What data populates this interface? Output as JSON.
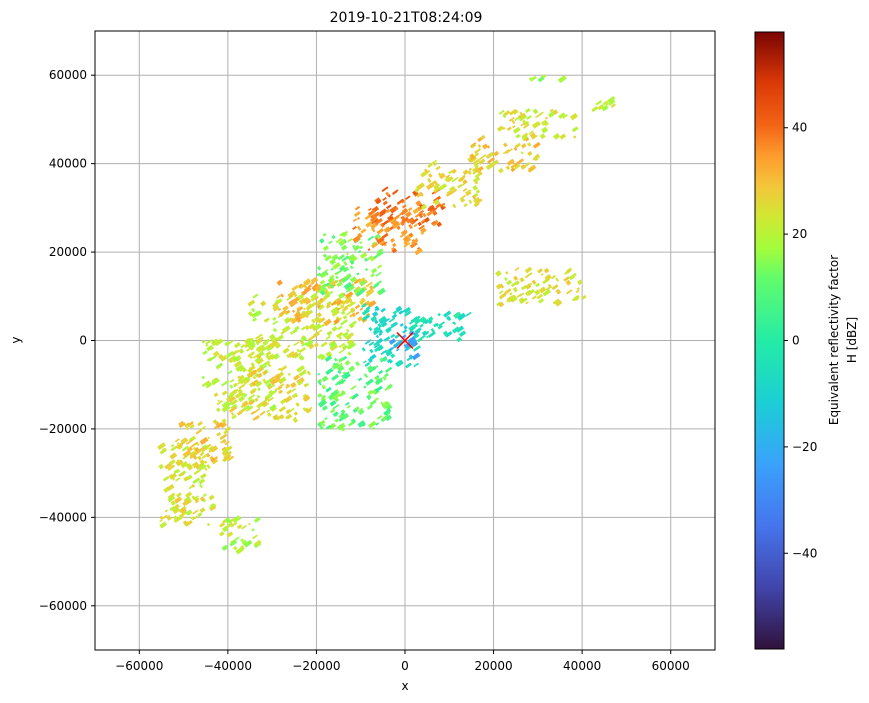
{
  "chart_data": {
    "type": "heatmap",
    "title": "2019-10-21T08:24:09",
    "xlabel": "x",
    "ylabel": "y",
    "xlim": [
      -70000,
      70000
    ],
    "ylim": [
      -70000,
      70000
    ],
    "xticks": [
      -60000,
      -40000,
      -20000,
      0,
      20000,
      40000,
      60000
    ],
    "yticks": [
      -60000,
      -40000,
      -20000,
      0,
      20000,
      40000,
      60000
    ],
    "xtick_labels": [
      "−60000",
      "−40000",
      "−20000",
      "0",
      "20000",
      "40000",
      "60000"
    ],
    "ytick_labels": [
      "−60000",
      "−40000",
      "−20000",
      "0",
      "20000",
      "40000",
      "60000"
    ],
    "grid": true,
    "colormap": "turbo",
    "colorbar": {
      "label_line1": "Equivalent reflectivity factor",
      "label_line2": "H [dBZ]",
      "range": [
        -58,
        58
      ],
      "ticks": [
        -40,
        -20,
        0,
        20,
        40
      ],
      "tick_labels": [
        "−40",
        "−20",
        "0",
        "20",
        "40"
      ]
    },
    "marker": {
      "symbol": "x",
      "x": 0,
      "y": 0,
      "color": "#ff0000"
    },
    "echo_regions": [
      {
        "x": [
          -56000,
          -44000
        ],
        "y": [
          -42000,
          -22000
        ],
        "dbz": 18
      },
      {
        "x": [
          -52000,
          -40000
        ],
        "y": [
          -28000,
          -18000
        ],
        "dbz": 22
      },
      {
        "x": [
          -46000,
          -30000
        ],
        "y": [
          -16000,
          0
        ],
        "dbz": 15
      },
      {
        "x": [
          -40000,
          -22000
        ],
        "y": [
          -18000,
          -6000
        ],
        "dbz": 20
      },
      {
        "x": [
          -42000,
          -34000
        ],
        "y": [
          -48000,
          -40000
        ],
        "dbz": 14
      },
      {
        "x": [
          -36000,
          -12000
        ],
        "y": [
          -4000,
          10000
        ],
        "dbz": 16
      },
      {
        "x": [
          -30000,
          -8000
        ],
        "y": [
          4000,
          14000
        ],
        "dbz": 24
      },
      {
        "x": [
          -20000,
          -6000
        ],
        "y": [
          10000,
          24000
        ],
        "dbz": 8
      },
      {
        "x": [
          -12000,
          4000
        ],
        "y": [
          20000,
          30000
        ],
        "dbz": 30
      },
      {
        "x": [
          -8000,
          8000
        ],
        "y": [
          26000,
          34000
        ],
        "dbz": 34
      },
      {
        "x": [
          2000,
          16000
        ],
        "y": [
          30000,
          40000
        ],
        "dbz": 20
      },
      {
        "x": [
          14000,
          30000
        ],
        "y": [
          38000,
          46000
        ],
        "dbz": 22
      },
      {
        "x": [
          20000,
          38000
        ],
        "y": [
          46000,
          52000
        ],
        "dbz": 18
      },
      {
        "x": [
          -20000,
          -4000
        ],
        "y": [
          -20000,
          -4000
        ],
        "dbz": 6
      },
      {
        "x": [
          -10000,
          2000
        ],
        "y": [
          -6000,
          8000
        ],
        "dbz": -8
      },
      {
        "x": [
          -4000,
          2000
        ],
        "y": [
          -4000,
          2000
        ],
        "dbz": -20
      },
      {
        "x": [
          0,
          14000
        ],
        "y": [
          0,
          6000
        ],
        "dbz": -4
      },
      {
        "x": [
          20000,
          40000
        ],
        "y": [
          8000,
          16000
        ],
        "dbz": 18
      },
      {
        "x": [
          42000,
          48000
        ],
        "y": [
          52000,
          55000
        ],
        "dbz": 16
      },
      {
        "x": [
          26000,
          36000
        ],
        "y": [
          59000,
          60000
        ],
        "dbz": 12
      }
    ]
  }
}
